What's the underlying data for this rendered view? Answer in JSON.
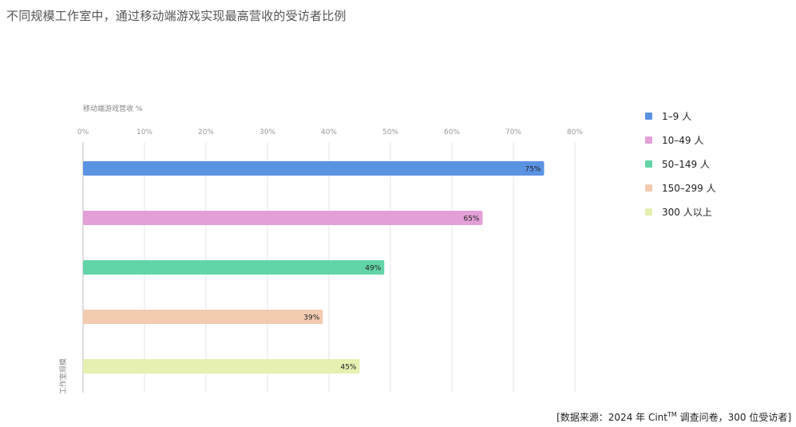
{
  "title": "不同规模工作室中，通过移动端游戏实现最高营收的受访者比例",
  "source": {
    "prefix": "[数据来源：2024 年 Cint",
    "tm": "TM",
    "suffix": " 调查问卷，300 位受访者]"
  },
  "chart_data": {
    "type": "bar",
    "orientation": "horizontal",
    "xlabel": "移动端游戏营收 %",
    "ylabel": "工作室规模",
    "xlim": [
      0,
      80
    ],
    "xticks": [
      "0%",
      "10%",
      "20%",
      "30%",
      "40%",
      "50%",
      "60%",
      "70%",
      "80%"
    ],
    "grid": true,
    "legend_position": "right",
    "categories": [
      "1–9 人",
      "10–49 人",
      "50–149 人",
      "150–299 人",
      "300 人以上"
    ],
    "values": [
      75,
      65,
      49,
      39,
      45
    ],
    "value_labels": [
      "75%",
      "65%",
      "49%",
      "39%",
      "45%"
    ],
    "colors": [
      "#5b93e3",
      "#e3a0d6",
      "#62d4a8",
      "#f2cbb1",
      "#e6f0b1"
    ]
  }
}
